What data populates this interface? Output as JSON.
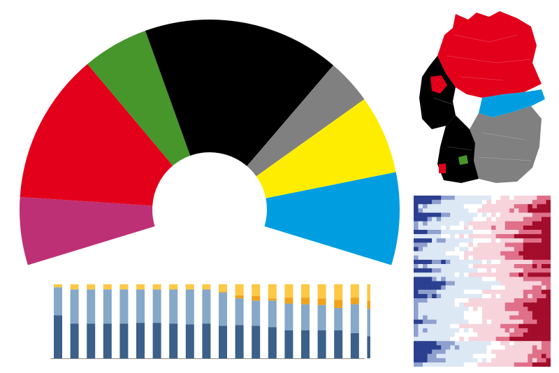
{
  "colors": {
    "left": "#be3075",
    "spd": "#e3001b",
    "greens": "#46962b",
    "cdu": "#000000",
    "csu": "#808080",
    "fdp": "#ffed00",
    "afd": "#009ee0",
    "bar_dark": "#3b6089",
    "bar_light": "#86a8c9",
    "bar_orange": "#f0a21b",
    "bar_yellow": "#fcc846"
  },
  "chart_data": [
    {
      "type": "pie",
      "style": "semicircle-donut",
      "slices": [
        {
          "color": "#be3075",
          "value": 69
        },
        {
          "color": "#e3001b",
          "value": 153
        },
        {
          "color": "#46962b",
          "value": 67
        },
        {
          "color": "#000000",
          "value": 200
        },
        {
          "color": "#808080",
          "value": 46
        },
        {
          "color": "#ffed00",
          "value": 80
        },
        {
          "color": "#009ee0",
          "value": 94
        }
      ]
    },
    {
      "type": "bar",
      "stacked": true,
      "ylim": [
        0,
        1
      ],
      "series": [
        {
          "color": "#3b6089",
          "values": [
            0.58,
            0.47,
            0.47,
            0.47,
            0.47,
            0.48,
            0.48,
            0.47,
            0.46,
            0.47,
            0.44,
            0.45,
            0.44,
            0.42,
            0.38,
            0.38,
            0.38,
            0.38,
            0.34,
            0.3
          ]
        },
        {
          "color": "#86a8c9",
          "values": [
            0.38,
            0.46,
            0.46,
            0.46,
            0.46,
            0.45,
            0.45,
            0.46,
            0.47,
            0.46,
            0.45,
            0.36,
            0.34,
            0.36,
            0.36,
            0.35,
            0.34,
            0.3,
            0.39,
            0.37
          ]
        },
        {
          "color": "#f0a21b",
          "values": [
            0,
            0,
            0,
            0,
            0,
            0,
            0,
            0,
            0,
            0,
            0.01,
            0.04,
            0.06,
            0.03,
            0.08,
            0.09,
            0.09,
            0.11,
            0.09,
            0.11
          ]
        },
        {
          "color": "#fcc846",
          "values": [
            0.04,
            0.07,
            0.07,
            0.07,
            0.07,
            0.07,
            0.07,
            0.07,
            0.07,
            0.07,
            0.1,
            0.15,
            0.16,
            0.19,
            0.18,
            0.18,
            0.19,
            0.21,
            0.18,
            0.22
          ]
        }
      ]
    },
    {
      "type": "heatmap",
      "rows": 40,
      "columns": 30,
      "colormap": [
        "#2a3f8f",
        "#8fa0cf",
        "#dde8f5",
        "#ffffff",
        "#f7d4dc",
        "#e0708a",
        "#a30d2b"
      ]
    }
  ],
  "map": {
    "regions": [
      {
        "name": "north-east",
        "color": "#e3001b"
      },
      {
        "name": "west",
        "color": "#000000"
      },
      {
        "name": "central-east",
        "color": "#009ee0"
      },
      {
        "name": "south-east",
        "color": "#808080"
      },
      {
        "name": "south-west",
        "color": "#000000"
      }
    ]
  }
}
